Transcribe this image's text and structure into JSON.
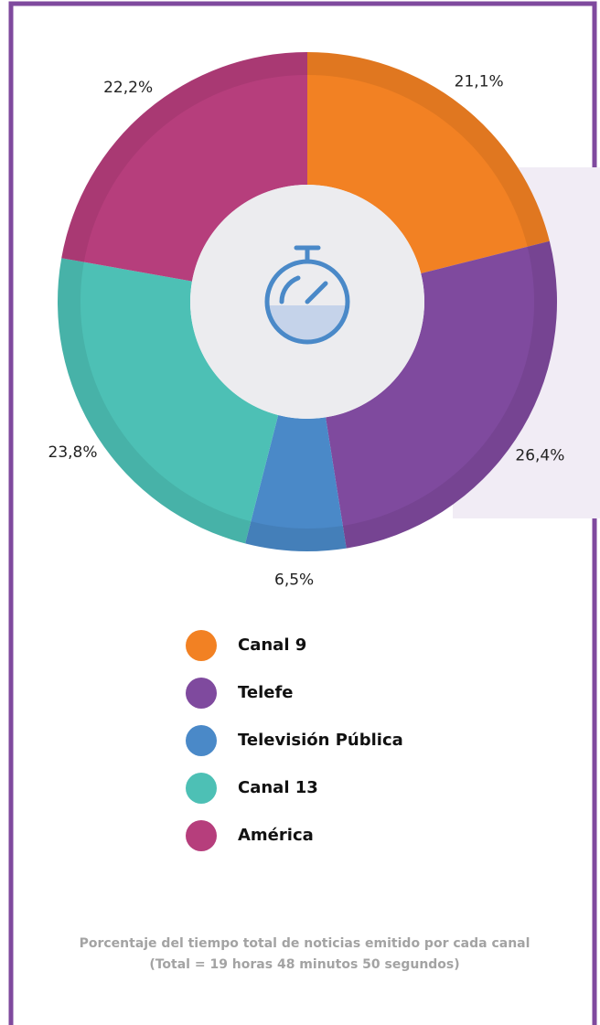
{
  "chart_data": {
    "type": "donut",
    "categories": [
      "Canal 9",
      "Telefe",
      "Televisión Pública",
      "Canal 13",
      "América"
    ],
    "values": [
      21.1,
      26.4,
      6.5,
      23.8,
      22.2
    ],
    "value_labels": [
      "21,1%",
      "26,4%",
      "6,5%",
      "23,8%",
      "22,2%"
    ],
    "colors": [
      "#f28123",
      "#7f4a9e",
      "#4a89c8",
      "#4dc0b5",
      "#b63e7c"
    ],
    "caption": [
      "Porcentaje del tiempo total de noticias emitido por cada canal",
      "(Total = 19 horas 48 minutos 50 segundos)"
    ]
  }
}
